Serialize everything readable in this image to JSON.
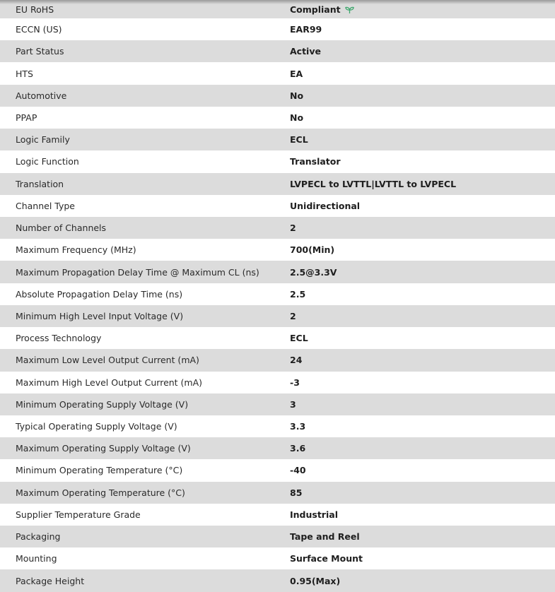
{
  "accent_color": "#3aa56a",
  "rows": [
    {
      "label": "EU RoHS",
      "value": "Compliant",
      "icon": "leaf-icon"
    },
    {
      "label": "ECCN (US)",
      "value": "EAR99"
    },
    {
      "label": "Part Status",
      "value": "Active"
    },
    {
      "label": "HTS",
      "value": "EA"
    },
    {
      "label": "Automotive",
      "value": "No"
    },
    {
      "label": "PPAP",
      "value": "No"
    },
    {
      "label": "Logic Family",
      "value": "ECL"
    },
    {
      "label": "Logic Function",
      "value": "Translator"
    },
    {
      "label": "Translation",
      "value": "LVPECL to LVTTL|LVTTL to LVPECL"
    },
    {
      "label": "Channel Type",
      "value": "Unidirectional"
    },
    {
      "label": "Number of Channels",
      "value": "2"
    },
    {
      "label": "Maximum Frequency (MHz)",
      "value": "700(Min)"
    },
    {
      "label": "Maximum Propagation Delay Time @ Maximum CL (ns)",
      "value": "2.5@3.3V"
    },
    {
      "label": "Absolute Propagation Delay Time (ns)",
      "value": "2.5"
    },
    {
      "label": "Minimum High Level Input Voltage (V)",
      "value": "2"
    },
    {
      "label": "Process Technology",
      "value": "ECL"
    },
    {
      "label": "Maximum Low Level Output Current (mA)",
      "value": "24"
    },
    {
      "label": "Maximum High Level Output Current (mA)",
      "value": "-3"
    },
    {
      "label": "Minimum Operating Supply Voltage (V)",
      "value": "3"
    },
    {
      "label": "Typical Operating Supply Voltage (V)",
      "value": "3.3"
    },
    {
      "label": "Maximum Operating Supply Voltage (V)",
      "value": "3.6"
    },
    {
      "label": "Minimum Operating Temperature (°C)",
      "value": "-40"
    },
    {
      "label": "Maximum Operating Temperature (°C)",
      "value": "85"
    },
    {
      "label": "Supplier Temperature Grade",
      "value": "Industrial"
    },
    {
      "label": "Packaging",
      "value": "Tape and Reel"
    },
    {
      "label": "Mounting",
      "value": "Surface Mount"
    },
    {
      "label": "Package Height",
      "value": "0.95(Max)"
    }
  ]
}
